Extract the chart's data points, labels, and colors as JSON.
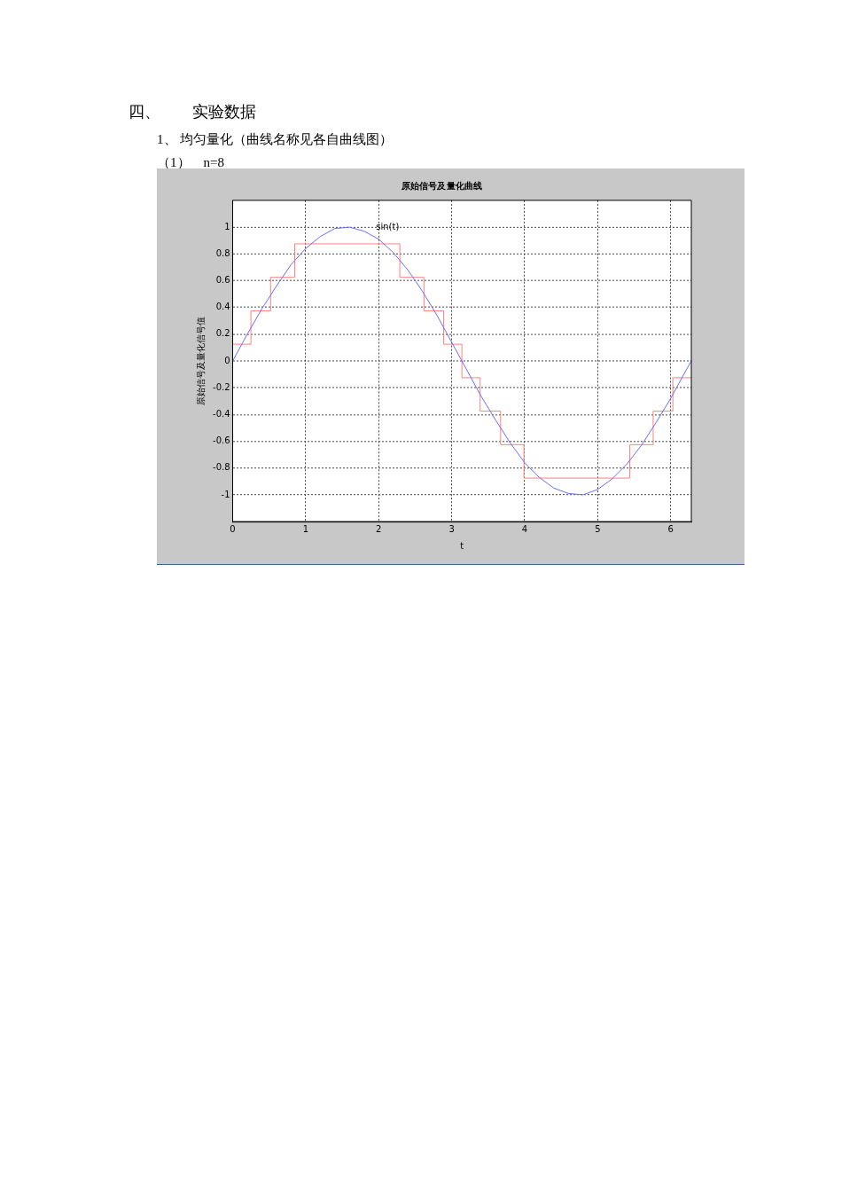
{
  "chart_data": {
    "type": "line",
    "title": "原始信号及量化曲线",
    "xlabel": "t",
    "ylabel": "原始信号及量化信号值",
    "annotations": [
      "四、　　实验数据",
      "1、 均匀量化（曲线名称见各自曲线图）",
      "（1）　n=8"
    ],
    "xlim": [
      0,
      6.283
    ],
    "xticks": [
      0,
      1,
      2,
      3,
      4,
      5,
      6
    ],
    "ylim": [
      -1.2,
      1.2
    ],
    "yticks": [
      -1,
      -0.8,
      -0.6,
      -0.4,
      -0.2,
      0,
      0.2,
      0.4,
      0.6,
      0.8,
      1
    ],
    "grid": true,
    "legend": false,
    "line_style": "solid",
    "marker": "none",
    "series": [
      {
        "name": "sin(t)",
        "color": "#6a6aff",
        "x": [
          0,
          0.2,
          0.4,
          0.6,
          0.8,
          1,
          1.2,
          1.4,
          1.6,
          1.8,
          2,
          2.2,
          2.4,
          2.6,
          2.8,
          3,
          3.2,
          3.4,
          3.6,
          3.8,
          4,
          4.2,
          4.4,
          4.6,
          4.8,
          5,
          5.2,
          5.4,
          5.6,
          5.8,
          6,
          6.2,
          6.283
        ],
        "values": [
          0,
          0.2,
          0.39,
          0.56,
          0.72,
          0.84,
          0.93,
          0.99,
          1,
          0.97,
          0.91,
          0.81,
          0.68,
          0.52,
          0.34,
          0.14,
          -0.06,
          -0.26,
          -0.44,
          -0.61,
          -0.76,
          -0.87,
          -0.95,
          -0.99,
          -1,
          -0.96,
          -0.88,
          -0.77,
          -0.63,
          -0.46,
          -0.28,
          -0.08,
          0
        ]
      },
      {
        "type": "step",
        "color": "#ff8080",
        "x": [
          0,
          0.25,
          0.52,
          0.85,
          2.29,
          2.62,
          2.89,
          3.14,
          3.39,
          3.67,
          3.99,
          5.44,
          5.76,
          6.03,
          6.283
        ],
        "values": [
          0.125,
          0.375,
          0.625,
          0.875,
          0.625,
          0.375,
          0.125,
          -0.125,
          -0.375,
          -0.625,
          -0.875,
          -0.625,
          -0.375,
          -0.125,
          -0.125
        ]
      }
    ]
  }
}
